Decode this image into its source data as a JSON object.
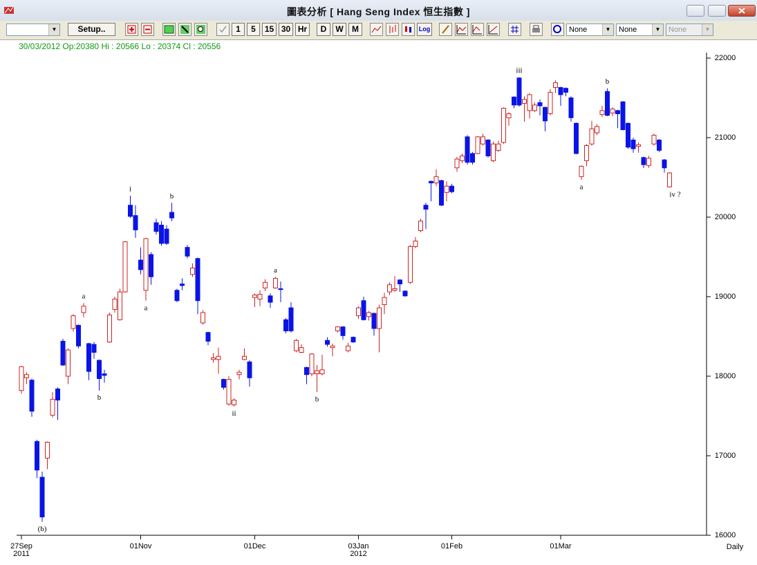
{
  "window": {
    "title": "圖表分析  [ Hang Seng Index    恒生指數 ]"
  },
  "toolbar": {
    "buttons": [
      "Setup..",
      "1",
      "5",
      "15",
      "30",
      "Hr",
      "D",
      "W",
      "M",
      "Log"
    ],
    "dropdowns": [
      "None",
      "None",
      "None"
    ]
  },
  "chart_data": {
    "type": "candlestick",
    "info": "30/03/2012 Op:20380 Hi : 20566 Lo : 20374 Cl : 20556",
    "period_label": "Daily",
    "up_color": "#cc2222",
    "down_color": "#0a14e6",
    "ylim": [
      16000,
      22000
    ],
    "yticks": [
      16000,
      17000,
      18000,
      19000,
      20000,
      21000,
      22000
    ],
    "categories": [
      "27Sep\n2011",
      null,
      null,
      null,
      null,
      null,
      null,
      null,
      null,
      null,
      null,
      null,
      null,
      null,
      null,
      null,
      null,
      null,
      null,
      null,
      null,
      null,
      null,
      "01Nov",
      null,
      null,
      null,
      null,
      null,
      null,
      null,
      null,
      null,
      null,
      null,
      null,
      null,
      null,
      null,
      null,
      null,
      null,
      null,
      null,
      null,
      "01Dec",
      null,
      null,
      null,
      null,
      null,
      null,
      null,
      null,
      null,
      null,
      null,
      null,
      null,
      null,
      null,
      null,
      null,
      null,
      null,
      "03Jan\n2012",
      null,
      null,
      null,
      null,
      null,
      null,
      null,
      null,
      null,
      null,
      null,
      null,
      null,
      null,
      null,
      null,
      null,
      "01Feb",
      null,
      null,
      null,
      null,
      null,
      null,
      null,
      null,
      null,
      null,
      null,
      null,
      null,
      null,
      null,
      null,
      null,
      null,
      null,
      null,
      "01Mar",
      null,
      null,
      null,
      null,
      null,
      null,
      null,
      null,
      null,
      null,
      null,
      null,
      null,
      null,
      null,
      null,
      null,
      null,
      null,
      null,
      null
    ],
    "open": [
      17820,
      17980,
      17950,
      17180,
      16730,
      16970,
      17510,
      17840,
      18440,
      18000,
      18600,
      18640,
      18800,
      18410,
      18400,
      18200,
      18030,
      18430,
      18840,
      18710,
      19060,
      20150,
      20020,
      19460,
      19080,
      19530,
      19930,
      19900,
      19850,
      20060,
      19080,
      19160,
      19620,
      19280,
      19480,
      18670,
      18550,
      18210,
      18210,
      17960,
      17650,
      17640,
      18020,
      18210,
      18180,
      18990,
      18970,
      19110,
      19010,
      19110,
      19100,
      18710,
      18860,
      18320,
      18300,
      18110,
      18030,
      18030,
      18030,
      18450,
      18360,
      18570,
      18620,
      18320,
      18490,
      18760,
      18950,
      18750,
      18790,
      18600,
      18900,
      19060,
      19080,
      19210,
      19070,
      19180,
      19630,
      19830,
      20150,
      20450,
      20430,
      20460,
      20310,
      20390,
      20620,
      20710,
      21010,
      20800,
      20800,
      20920,
      20970,
      20710,
      20840,
      20940,
      21250,
      21510,
      21750,
      21430,
      21340,
      21340,
      21440,
      21380,
      21300,
      21630,
      21630,
      21620,
      21500,
      21180,
      20510,
      20710,
      20920,
      21060,
      21290,
      21580,
      21310,
      21340,
      21450,
      21180,
      20970,
      20890,
      20750,
      20650,
      20920,
      20970,
      20720,
      20380
    ],
    "high": [
      18130,
      18050,
      17970,
      17200,
      16800,
      17180,
      17800,
      17860,
      18470,
      18350,
      18780,
      18650,
      18920,
      18420,
      18430,
      18210,
      18080,
      18800,
      19000,
      19100,
      19700,
      20270,
      20150,
      19620,
      19740,
      19560,
      19980,
      19950,
      19900,
      20180,
      19100,
      19230,
      19650,
      19420,
      19490,
      18830,
      18560,
      18290,
      18360,
      17970,
      18000,
      17720,
      18080,
      18350,
      18200,
      19040,
      19080,
      19220,
      19040,
      19250,
      19190,
      18730,
      18930,
      18470,
      18400,
      18120,
      18290,
      18140,
      18270,
      18490,
      18410,
      18630,
      18630,
      18420,
      18500,
      18880,
      19000,
      18820,
      18800,
      18900,
      19050,
      19180,
      19260,
      19220,
      19080,
      19650,
      19750,
      19980,
      20180,
      20460,
      20600,
      20470,
      20450,
      20420,
      20760,
      20800,
      21030,
      20820,
      21020,
      21050,
      20980,
      20950,
      20960,
      21380,
      21320,
      21520,
      21760,
      21520,
      21560,
      21440,
      21480,
      21390,
      21610,
      21720,
      21640,
      21630,
      21520,
      21190,
      20650,
      20920,
      21210,
      21170,
      21400,
      21620,
      21380,
      21350,
      21460,
      21190,
      21000,
      20940,
      20760,
      20770,
      21050,
      20980,
      20730,
      20566
    ],
    "low": [
      17780,
      17900,
      17490,
      16720,
      16170,
      16830,
      17480,
      17450,
      18130,
      17900,
      18560,
      18350,
      18740,
      17950,
      18220,
      17820,
      17920,
      18420,
      18800,
      18700,
      19050,
      19990,
      19740,
      19280,
      18950,
      19150,
      19780,
      19640,
      19650,
      19950,
      18930,
      19080,
      19480,
      19250,
      18780,
      18650,
      18390,
      18170,
      18030,
      17830,
      17630,
      17620,
      17960,
      18200,
      17870,
      18870,
      18880,
      19070,
      18860,
      19100,
      18930,
      18540,
      18550,
      18300,
      18290,
      17900,
      18000,
      17800,
      18010,
      18370,
      18250,
      18550,
      18460,
      18300,
      18420,
      18720,
      18700,
      18700,
      18510,
      18300,
      18780,
      19020,
      19060,
      19060,
      19000,
      19160,
      19610,
      19810,
      19850,
      20200,
      20390,
      20140,
      20200,
      20300,
      20570,
      20680,
      20660,
      20660,
      20790,
      20900,
      20750,
      20690,
      20820,
      20920,
      21150,
      21370,
      21390,
      21200,
      21240,
      21320,
      21280,
      21080,
      21280,
      21560,
      21400,
      21520,
      21200,
      20790,
      20470,
      20640,
      20900,
      21030,
      21260,
      21270,
      21270,
      21120,
      21090,
      20860,
      20810,
      20810,
      20620,
      20620,
      20900,
      20820,
      20560,
      20374
    ],
    "close": [
      18120,
      18020,
      17560,
      16820,
      16230,
      17170,
      17710,
      17700,
      18140,
      18330,
      18760,
      18380,
      18880,
      18060,
      18300,
      17970,
      18010,
      18770,
      18970,
      19060,
      19690,
      20010,
      19840,
      19340,
      19730,
      19250,
      19820,
      19670,
      19670,
      19990,
      18950,
      19140,
      19510,
      19360,
      18950,
      18800,
      18440,
      18230,
      18250,
      17860,
      17960,
      17700,
      18050,
      18250,
      17980,
      19020,
      19030,
      19180,
      18930,
      19230,
      19090,
      18570,
      18570,
      18450,
      18360,
      18020,
      18280,
      18070,
      18080,
      18400,
      18380,
      18620,
      18510,
      18380,
      18430,
      18860,
      18710,
      18800,
      18600,
      18860,
      18990,
      19150,
      19100,
      19160,
      19010,
      19630,
      19700,
      19950,
      20100,
      20430,
      20510,
      20150,
      20390,
      20320,
      20730,
      20770,
      20690,
      20690,
      21010,
      21010,
      20770,
      20920,
      20920,
      21370,
      21300,
      21410,
      21410,
      21480,
      21540,
      21410,
      21400,
      21210,
      21570,
      21690,
      21540,
      21570,
      21250,
      20800,
      20640,
      20900,
      21110,
      21140,
      21340,
      21280,
      21360,
      21300,
      21100,
      20880,
      20860,
      20910,
      20660,
      20740,
      21030,
      20840,
      20620,
      20556
    ],
    "annotations": [
      {
        "text": "(b)",
        "candle": 4,
        "side": "below"
      },
      {
        "text": "a",
        "candle": 12,
        "side": "above"
      },
      {
        "text": "b",
        "candle": 15,
        "side": "below"
      },
      {
        "text": "i",
        "candle": 21,
        "side": "above"
      },
      {
        "text": "a",
        "candle": 24,
        "side": "below"
      },
      {
        "text": "b",
        "candle": 29,
        "side": "above"
      },
      {
        "text": "ii",
        "candle": 41,
        "side": "below"
      },
      {
        "text": "a",
        "candle": 49,
        "side": "above"
      },
      {
        "text": "b",
        "candle": 57,
        "side": "below"
      },
      {
        "text": "iii",
        "candle": 96,
        "side": "above"
      },
      {
        "text": "a",
        "candle": 108,
        "side": "below"
      },
      {
        "text": "b",
        "candle": 113,
        "side": "above"
      },
      {
        "text": "iv ?",
        "candle": 125,
        "side": "below"
      }
    ]
  }
}
